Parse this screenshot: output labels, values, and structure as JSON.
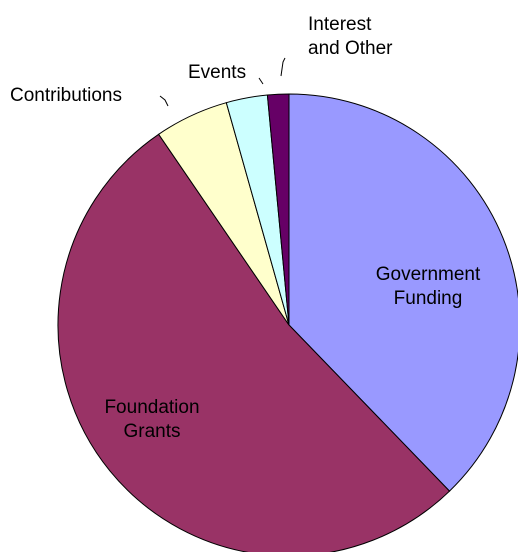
{
  "chart_data": {
    "type": "pie",
    "title": "",
    "slices": [
      {
        "label": "Government Funding",
        "label_lines": [
          "Government",
          "Funding"
        ],
        "value": 38.0,
        "color": "#9999ff",
        "label_position": "inside"
      },
      {
        "label": "Foundation Grants",
        "label_lines": [
          "Foundation",
          "Grants"
        ],
        "value": 53.0,
        "color": "#993366",
        "label_position": "inside"
      },
      {
        "label": "Contributions",
        "label_lines": [
          "Contributions"
        ],
        "value": 5.2,
        "color": "#ffffcc",
        "label_position": "outside"
      },
      {
        "label": "Events",
        "label_lines": [
          "Events"
        ],
        "value": 2.9,
        "color": "#ccffff",
        "label_position": "outside"
      },
      {
        "label": "Interest and Other",
        "label_lines": [
          "Interest",
          "and Other"
        ],
        "value": 1.5,
        "color": "#660066",
        "label_position": "outside"
      }
    ],
    "legend": "none"
  }
}
